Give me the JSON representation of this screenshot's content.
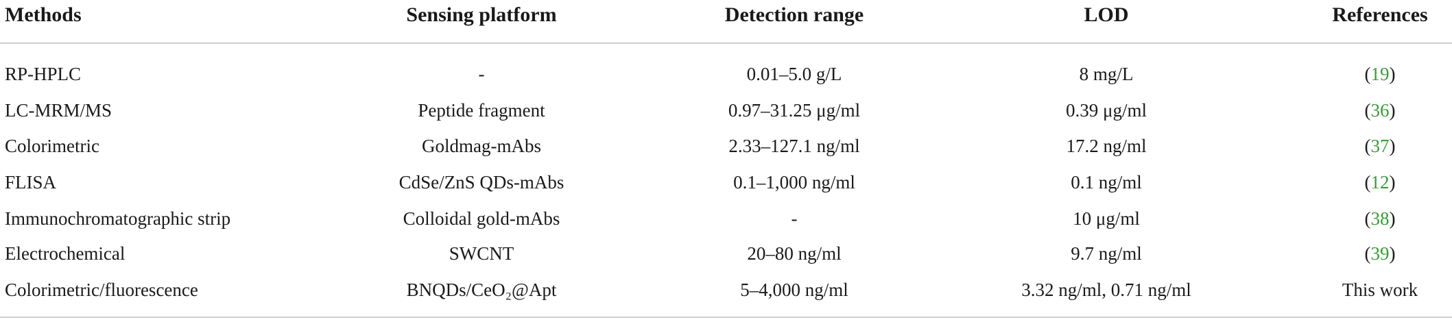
{
  "table": {
    "header": [
      "Methods",
      "Sensing platform",
      "Detection range",
      "LOD",
      "References"
    ],
    "rows": [
      [
        "RP-HPLC",
        "-",
        "0.01–5.0 g/L",
        "8 mg/L",
        "(19)"
      ],
      [
        "LC-MRM/MS",
        "Peptide fragment",
        "0.97–31.25 μg/ml",
        "0.39 μg/ml",
        "(36)"
      ],
      [
        "Colorimetric",
        "Goldmag-mAbs",
        "2.33–127.1 ng/ml",
        "17.2 ng/ml",
        "(37)"
      ],
      [
        "FLISA",
        "CdSe/ZnS QDs-mAbs",
        "0.1–1,000 ng/ml",
        "0.1 ng/ml",
        "(12)"
      ],
      [
        "Immunochromatographic strip",
        "Colloidal gold-mAbs",
        "-",
        "10 μg/ml",
        "(38)"
      ],
      [
        "Electrochemical",
        "SWCNT",
        "20–80 ng/ml",
        "9.7 ng/ml",
        "(39)"
      ],
      [
        "Colorimetric/fluorescence",
        "BNQDs/CeO₂@Apt",
        "5–4,000 ng/ml",
        "3.32 ng/ml, 0.71 ng/ml",
        "This work"
      ]
    ]
  }
}
